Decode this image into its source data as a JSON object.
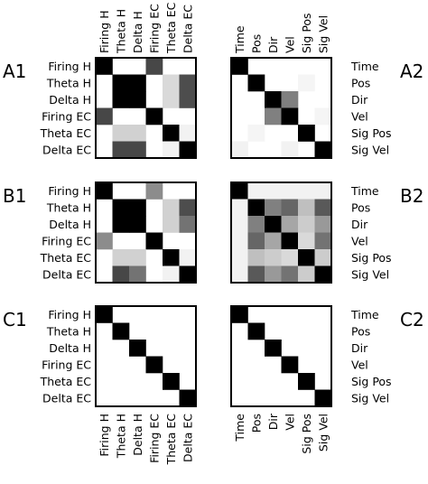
{
  "left_labels": [
    "Firing H",
    "Theta H",
    "Delta H",
    "Firing EC",
    "Theta EC",
    "Delta EC"
  ],
  "right_labels": [
    "Time",
    "Pos",
    "Dir",
    "Vel",
    "Sig Pos",
    "Sig Vel"
  ],
  "panels": [
    {
      "id": "A1",
      "side": "left",
      "row": 0,
      "matrix": [
        [
          1.0,
          0,
          0,
          0.72,
          0,
          0
        ],
        [
          0,
          1.0,
          1.0,
          0,
          0.15,
          0.7
        ],
        [
          0,
          1.0,
          1.0,
          0,
          0.15,
          0.7
        ],
        [
          0.72,
          0,
          0,
          1.0,
          0,
          0
        ],
        [
          0,
          0.18,
          0.18,
          0,
          1.0,
          0.05
        ],
        [
          0,
          0.72,
          0.72,
          0,
          0.05,
          1.0
        ]
      ]
    },
    {
      "id": "A2",
      "side": "right",
      "row": 0,
      "matrix": [
        [
          1.0,
          0,
          0,
          0,
          0,
          0
        ],
        [
          0,
          1.0,
          0,
          0,
          0.04,
          0
        ],
        [
          0,
          0,
          1.0,
          0.5,
          0,
          0
        ],
        [
          0,
          0,
          0.5,
          1.0,
          0,
          0.04
        ],
        [
          0,
          0.04,
          0,
          0,
          1.0,
          0
        ],
        [
          0.05,
          0,
          0,
          0.05,
          0,
          1.0
        ]
      ]
    },
    {
      "id": "B1",
      "side": "left",
      "row": 1,
      "matrix": [
        [
          1.0,
          0,
          0,
          0.45,
          0,
          0
        ],
        [
          0,
          1.0,
          1.0,
          0,
          0.18,
          0.7
        ],
        [
          0,
          1.0,
          1.0,
          0,
          0.18,
          0.55
        ],
        [
          0.45,
          0,
          0,
          1.0,
          0,
          0
        ],
        [
          0,
          0.18,
          0.18,
          0,
          1.0,
          0.05
        ],
        [
          0,
          0.72,
          0.55,
          0,
          0.05,
          1.0
        ]
      ]
    },
    {
      "id": "B2",
      "side": "right",
      "row": 1,
      "matrix": [
        [
          1.0,
          0.05,
          0.05,
          0.05,
          0.05,
          0.05
        ],
        [
          0.05,
          1.0,
          0.5,
          0.6,
          0.25,
          0.65
        ],
        [
          0.05,
          0.5,
          1.0,
          0.35,
          0.2,
          0.4
        ],
        [
          0.05,
          0.6,
          0.35,
          1.0,
          0.15,
          0.55
        ],
        [
          0.05,
          0.25,
          0.2,
          0.15,
          1.0,
          0.2
        ],
        [
          0.05,
          0.65,
          0.4,
          0.55,
          0.2,
          1.0
        ]
      ]
    },
    {
      "id": "C1",
      "side": "left",
      "row": 2,
      "matrix": [
        [
          1,
          0,
          0,
          0,
          0,
          0
        ],
        [
          0,
          1,
          0,
          0,
          0,
          0
        ],
        [
          0,
          0,
          1,
          0,
          0,
          0
        ],
        [
          0,
          0,
          0,
          1,
          0,
          0
        ],
        [
          0,
          0,
          0,
          0,
          1,
          0
        ],
        [
          0,
          0,
          0,
          0,
          0,
          1
        ]
      ]
    },
    {
      "id": "C2",
      "side": "right",
      "row": 2,
      "matrix": [
        [
          1,
          0,
          0,
          0,
          0,
          0
        ],
        [
          0,
          1,
          0,
          0,
          0,
          0
        ],
        [
          0,
          0,
          1,
          0,
          0,
          0
        ],
        [
          0,
          0,
          0,
          1,
          0,
          0
        ],
        [
          0,
          0,
          0,
          0,
          1,
          0
        ],
        [
          0,
          0,
          0,
          0,
          0,
          1
        ]
      ]
    }
  ]
}
